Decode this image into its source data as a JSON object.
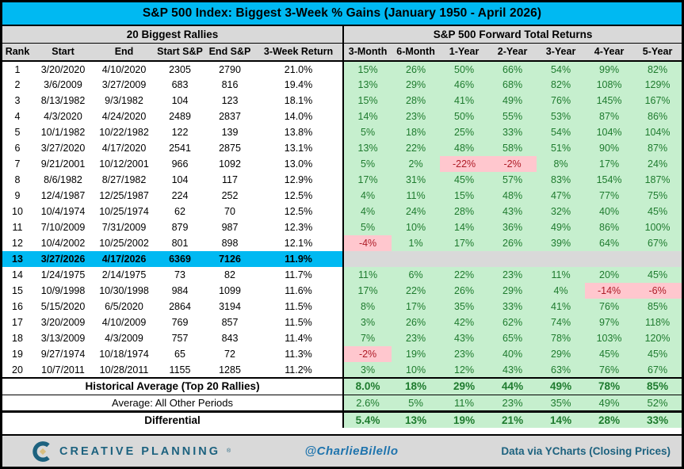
{
  "title": "S&P 500 Index: Biggest 3-Week % Gains (January 1950 - April 2026)",
  "sections": {
    "left": "20 Biggest Rallies",
    "right": "S&P 500 Forward Total Returns"
  },
  "chart_data": {
    "type": "table",
    "title": "S&P 500 Index: Biggest 3-Week % Gains (January 1950 - April 2026)",
    "left_section": "20 Biggest Rallies",
    "right_section": "S&P 500 Forward Total Returns",
    "left_columns": [
      "Rank",
      "Start",
      "End",
      "Start S&P",
      "End S&P",
      "3-Week Return"
    ],
    "right_columns": [
      "3-Month",
      "6-Month",
      "1-Year",
      "2-Year",
      "3-Year",
      "4-Year",
      "5-Year"
    ],
    "rows": [
      {
        "rank": "1",
        "start": "3/20/2020",
        "end": "4/10/2020",
        "start_sp": "2305",
        "end_sp": "2790",
        "ret": "21.0%",
        "fwd": [
          "15%",
          "26%",
          "50%",
          "66%",
          "54%",
          "99%",
          "82%"
        ]
      },
      {
        "rank": "2",
        "start": "3/6/2009",
        "end": "3/27/2009",
        "start_sp": "683",
        "end_sp": "816",
        "ret": "19.4%",
        "fwd": [
          "13%",
          "29%",
          "46%",
          "68%",
          "82%",
          "108%",
          "129%"
        ]
      },
      {
        "rank": "3",
        "start": "8/13/1982",
        "end": "9/3/1982",
        "start_sp": "104",
        "end_sp": "123",
        "ret": "18.1%",
        "fwd": [
          "15%",
          "28%",
          "41%",
          "49%",
          "76%",
          "145%",
          "167%"
        ]
      },
      {
        "rank": "4",
        "start": "4/3/2020",
        "end": "4/24/2020",
        "start_sp": "2489",
        "end_sp": "2837",
        "ret": "14.0%",
        "fwd": [
          "14%",
          "23%",
          "50%",
          "55%",
          "53%",
          "87%",
          "86%"
        ]
      },
      {
        "rank": "5",
        "start": "10/1/1982",
        "end": "10/22/1982",
        "start_sp": "122",
        "end_sp": "139",
        "ret": "13.8%",
        "fwd": [
          "5%",
          "18%",
          "25%",
          "33%",
          "54%",
          "104%",
          "104%"
        ]
      },
      {
        "rank": "6",
        "start": "3/27/2020",
        "end": "4/17/2020",
        "start_sp": "2541",
        "end_sp": "2875",
        "ret": "13.1%",
        "fwd": [
          "13%",
          "22%",
          "48%",
          "58%",
          "51%",
          "90%",
          "87%"
        ]
      },
      {
        "rank": "7",
        "start": "9/21/2001",
        "end": "10/12/2001",
        "start_sp": "966",
        "end_sp": "1092",
        "ret": "13.0%",
        "fwd": [
          "5%",
          "2%",
          "-22%",
          "-2%",
          "8%",
          "17%",
          "24%"
        ]
      },
      {
        "rank": "8",
        "start": "8/6/1982",
        "end": "8/27/1982",
        "start_sp": "104",
        "end_sp": "117",
        "ret": "12.9%",
        "fwd": [
          "17%",
          "31%",
          "45%",
          "57%",
          "83%",
          "154%",
          "187%"
        ]
      },
      {
        "rank": "9",
        "start": "12/4/1987",
        "end": "12/25/1987",
        "start_sp": "224",
        "end_sp": "252",
        "ret": "12.5%",
        "fwd": [
          "4%",
          "11%",
          "15%",
          "48%",
          "47%",
          "77%",
          "75%"
        ]
      },
      {
        "rank": "10",
        "start": "10/4/1974",
        "end": "10/25/1974",
        "start_sp": "62",
        "end_sp": "70",
        "ret": "12.5%",
        "fwd": [
          "4%",
          "24%",
          "28%",
          "43%",
          "32%",
          "40%",
          "45%"
        ]
      },
      {
        "rank": "11",
        "start": "7/10/2009",
        "end": "7/31/2009",
        "start_sp": "879",
        "end_sp": "987",
        "ret": "12.3%",
        "fwd": [
          "5%",
          "10%",
          "14%",
          "36%",
          "49%",
          "86%",
          "100%"
        ]
      },
      {
        "rank": "12",
        "start": "10/4/2002",
        "end": "10/25/2002",
        "start_sp": "801",
        "end_sp": "898",
        "ret": "12.1%",
        "fwd": [
          "-4%",
          "1%",
          "17%",
          "26%",
          "39%",
          "64%",
          "67%"
        ]
      },
      {
        "rank": "13",
        "start": "3/27/2026",
        "end": "4/17/2026",
        "start_sp": "6369",
        "end_sp": "7126",
        "ret": "11.9%",
        "fwd": null,
        "highlight": true
      },
      {
        "rank": "14",
        "start": "1/24/1975",
        "end": "2/14/1975",
        "start_sp": "73",
        "end_sp": "82",
        "ret": "11.7%",
        "fwd": [
          "11%",
          "6%",
          "22%",
          "23%",
          "11%",
          "20%",
          "45%"
        ]
      },
      {
        "rank": "15",
        "start": "10/9/1998",
        "end": "10/30/1998",
        "start_sp": "984",
        "end_sp": "1099",
        "ret": "11.6%",
        "fwd": [
          "17%",
          "22%",
          "26%",
          "29%",
          "4%",
          "-14%",
          "-6%"
        ]
      },
      {
        "rank": "16",
        "start": "5/15/2020",
        "end": "6/5/2020",
        "start_sp": "2864",
        "end_sp": "3194",
        "ret": "11.5%",
        "fwd": [
          "8%",
          "17%",
          "35%",
          "33%",
          "41%",
          "76%",
          "85%"
        ]
      },
      {
        "rank": "17",
        "start": "3/20/2009",
        "end": "4/10/2009",
        "start_sp": "769",
        "end_sp": "857",
        "ret": "11.5%",
        "fwd": [
          "3%",
          "26%",
          "42%",
          "62%",
          "74%",
          "97%",
          "118%"
        ]
      },
      {
        "rank": "18",
        "start": "3/13/2009",
        "end": "4/3/2009",
        "start_sp": "757",
        "end_sp": "843",
        "ret": "11.4%",
        "fwd": [
          "7%",
          "23%",
          "43%",
          "65%",
          "78%",
          "103%",
          "120%"
        ]
      },
      {
        "rank": "19",
        "start": "9/27/1974",
        "end": "10/18/1974",
        "start_sp": "65",
        "end_sp": "72",
        "ret": "11.3%",
        "fwd": [
          "-2%",
          "19%",
          "23%",
          "40%",
          "29%",
          "45%",
          "45%"
        ]
      },
      {
        "rank": "20",
        "start": "10/7/2011",
        "end": "10/28/2011",
        "start_sp": "1155",
        "end_sp": "1285",
        "ret": "11.2%",
        "fwd": [
          "3%",
          "10%",
          "12%",
          "43%",
          "63%",
          "76%",
          "67%"
        ]
      }
    ],
    "summary": [
      {
        "label": "Historical Average (Top 20 Rallies)",
        "values": [
          "8.0%",
          "18%",
          "29%",
          "44%",
          "49%",
          "78%",
          "85%"
        ],
        "bold": true
      },
      {
        "label": "Average: All Other Periods",
        "values": [
          "2.6%",
          "5%",
          "11%",
          "23%",
          "35%",
          "49%",
          "52%"
        ],
        "bold": false
      },
      {
        "label": "Differential",
        "values": [
          "5.4%",
          "13%",
          "19%",
          "21%",
          "14%",
          "28%",
          "33%"
        ],
        "bold": true
      }
    ]
  },
  "footer": {
    "brand": "CREATIVE PLANNING",
    "brand_mark": "®",
    "handle": "@CharlieBilello",
    "source": "Data via YCharts (Closing Prices)"
  },
  "colors": {
    "accent_cyan": "#00B9F2",
    "gray_band": "#D9D9D9",
    "green_bg": "#C6EFCE",
    "green_text": "#1E7B2E",
    "pink_bg": "#FFC7CE",
    "red_text": "#AE1C27",
    "brand_blue": "#1D627F",
    "handle_blue": "#1F74AD",
    "gold": "#D9BE7F"
  }
}
